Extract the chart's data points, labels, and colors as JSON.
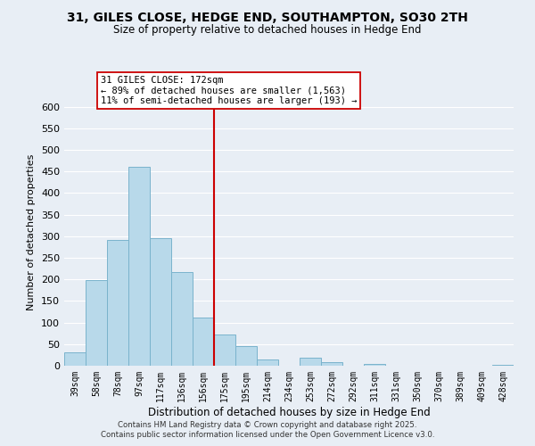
{
  "title": "31, GILES CLOSE, HEDGE END, SOUTHAMPTON, SO30 2TH",
  "subtitle": "Size of property relative to detached houses in Hedge End",
  "xlabel": "Distribution of detached houses by size in Hedge End",
  "ylabel": "Number of detached properties",
  "bar_labels": [
    "39sqm",
    "58sqm",
    "78sqm",
    "97sqm",
    "117sqm",
    "136sqm",
    "156sqm",
    "175sqm",
    "195sqm",
    "214sqm",
    "234sqm",
    "253sqm",
    "272sqm",
    "292sqm",
    "311sqm",
    "331sqm",
    "350sqm",
    "370sqm",
    "389sqm",
    "409sqm",
    "428sqm"
  ],
  "bar_heights": [
    30,
    198,
    292,
    460,
    295,
    217,
    112,
    73,
    46,
    14,
    0,
    19,
    9,
    0,
    5,
    0,
    0,
    0,
    0,
    0,
    2
  ],
  "bar_color": "#b8d9ea",
  "bar_edge_color": "#7ab3cc",
  "marker_color": "#cc0000",
  "annotation_line1": "31 GILES CLOSE: 172sqm",
  "annotation_line2": "← 89% of detached houses are smaller (1,563)",
  "annotation_line3": "11% of semi-detached houses are larger (193) →",
  "ylim": [
    0,
    620
  ],
  "yticks": [
    0,
    50,
    100,
    150,
    200,
    250,
    300,
    350,
    400,
    450,
    500,
    550,
    600
  ],
  "footnote1": "Contains HM Land Registry data © Crown copyright and database right 2025.",
  "footnote2": "Contains public sector information licensed under the Open Government Licence v3.0.",
  "bg_color": "#e8eef5",
  "grid_color": "#ffffff"
}
